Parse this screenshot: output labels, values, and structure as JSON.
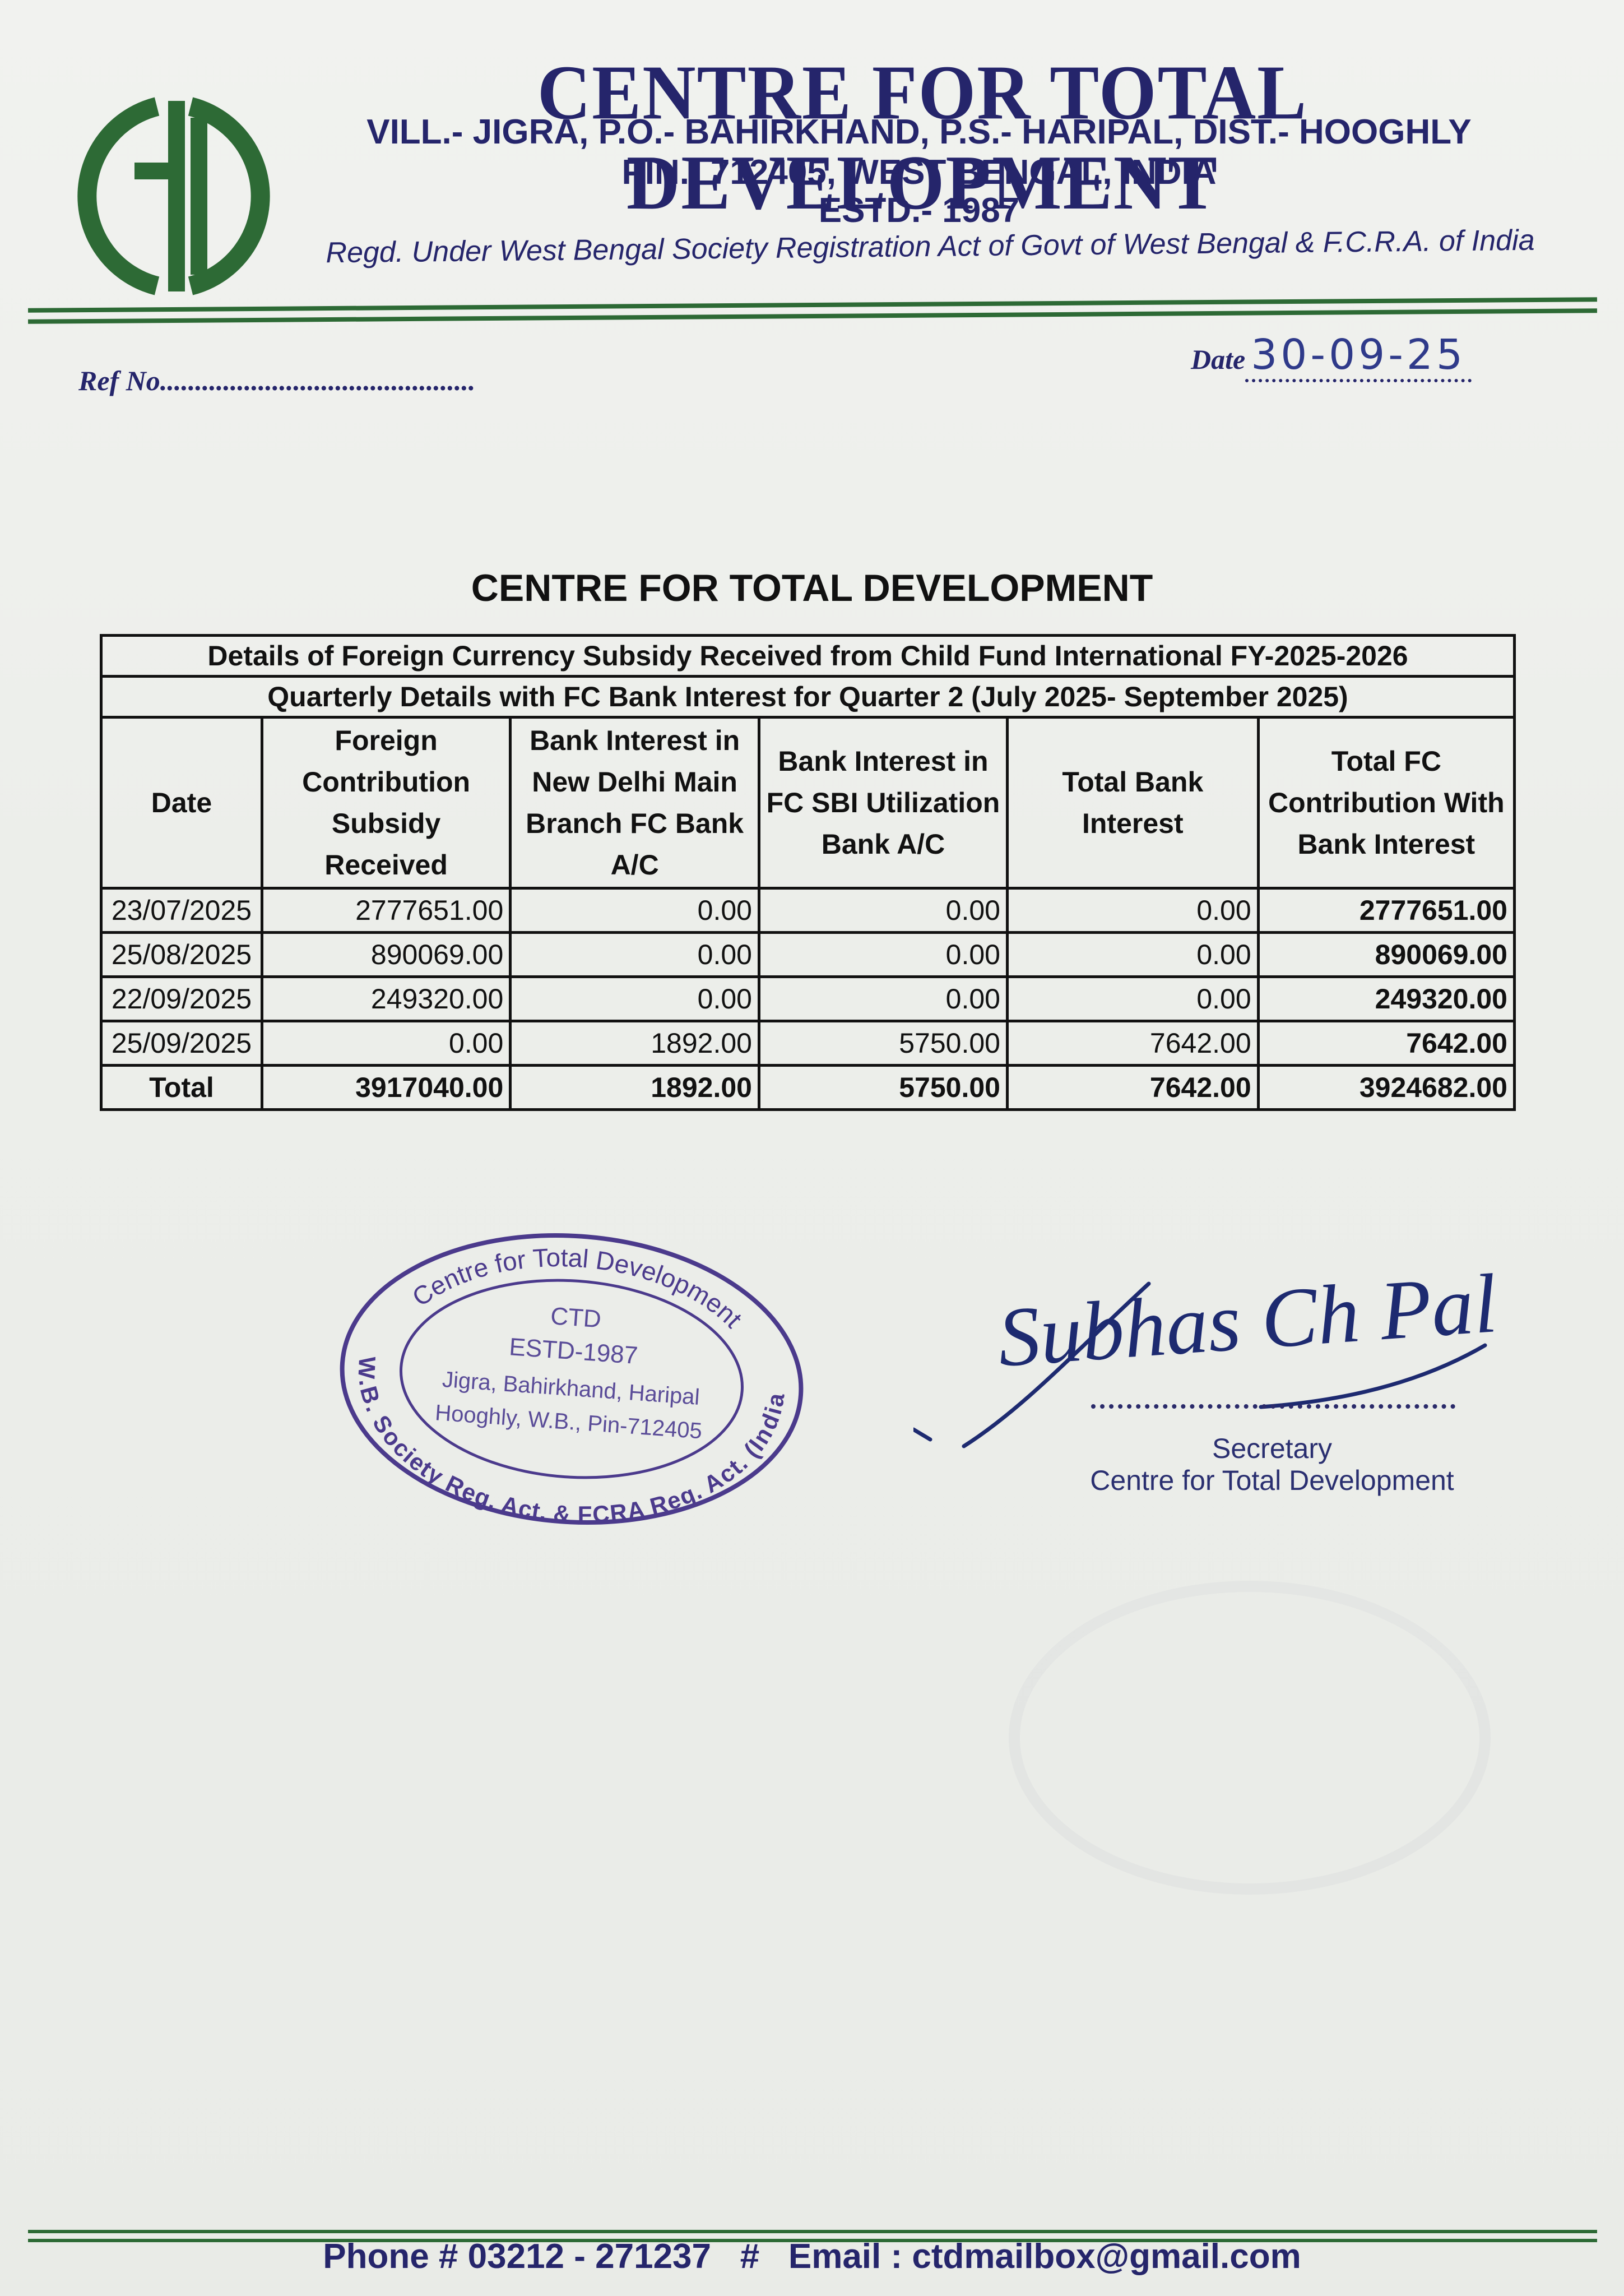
{
  "letterhead": {
    "logo_text": "CtD",
    "org_name": "CENTRE FOR TOTAL DEVELOPMENT",
    "address_line1": "VILL.- JIGRA, P.O.- BAHIRKHAND, P.S.- HARIPAL, DIST.- HOOGHLY",
    "address_line2": "PIN.- 712405, WEST BENGAL, INDIA",
    "established": "ESTD.- 1987",
    "registration": "Regd. Under West Bengal Society Registration Act of Govt of West Bengal & F.C.R.A. of India",
    "brand_green": "#2d6a35",
    "brand_navy": "#25256b"
  },
  "ref": {
    "label": "Ref No",
    "dots": ".............................................",
    "value": ""
  },
  "date": {
    "label": "Date",
    "value": "30-09-25"
  },
  "document": {
    "title": "CENTRE FOR TOTAL DEVELOPMENT",
    "table": {
      "caption1": "Details of Foreign Currency  Subsidy Received from Child Fund International FY-2025-2026",
      "caption2": "Quarterly Details with FC Bank Interest for Quarter 2 (July 2025- September 2025)",
      "headers": [
        "Date",
        "Foreign Contribution Subsidy Received",
        "Bank Interest  in New Delhi Main Branch FC Bank A/C",
        "Bank Interest in FC SBI Utilization Bank A/C",
        "Total Bank Interest",
        "Total FC Contribution With Bank Interest"
      ],
      "rows": [
        [
          "23/07/2025",
          "2777651.00",
          "0.00",
          "0.00",
          "0.00",
          "2777651.00"
        ],
        [
          "25/08/2025",
          "890069.00",
          "0.00",
          "0.00",
          "0.00",
          "890069.00"
        ],
        [
          "22/09/2025",
          "249320.00",
          "0.00",
          "0.00",
          "0.00",
          "249320.00"
        ],
        [
          "25/09/2025",
          "0.00",
          "1892.00",
          "5750.00",
          "7642.00",
          "7642.00"
        ]
      ],
      "total": [
        "Total",
        "3917040.00",
        "1892.00",
        "5750.00",
        "7642.00",
        "3924682.00"
      ]
    }
  },
  "stamp": {
    "outer_top": "Centre for Total Development",
    "outer_bottom": "W.B. Society Reg. Act. & FCRA Reg. Act. (India)",
    "line1": "CTD",
    "line2": "ESTD-1987",
    "line3": "Jigra, Bahirkhand, Haripal",
    "line4": "Hooghly, W.B., Pin-712405",
    "color": "#4b3a8c"
  },
  "signatory": {
    "signature": "Subhas Ch Pal",
    "title": "Secretary",
    "org": "Centre for Total Development"
  },
  "footer": {
    "text": "Phone # 03212 - 271237   #   Email : ctdmailbox@gmail.com"
  }
}
